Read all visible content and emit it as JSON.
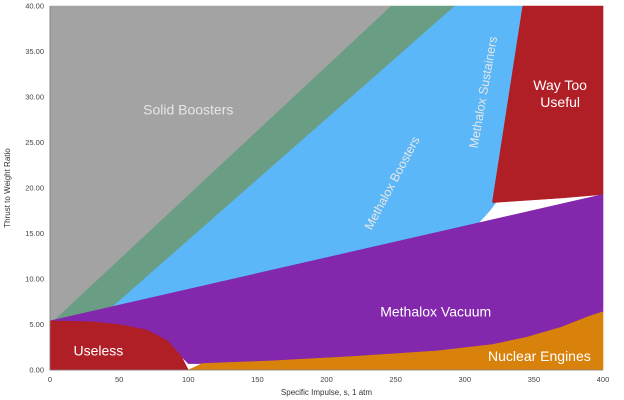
{
  "chart_data": {
    "type": "area",
    "title": "",
    "xlabel": "Specific Impulse, s, 1 atm",
    "ylabel": "Thrust to Weight Ratio",
    "xlim": [
      0,
      400
    ],
    "ylim": [
      0,
      40
    ],
    "x_ticks": [
      0,
      50,
      100,
      150,
      200,
      250,
      300,
      350,
      400
    ],
    "y_ticks": [
      "0.00",
      "5.00",
      "10.00",
      "15.00",
      "20.00",
      "25.00",
      "30.00",
      "35.00",
      "40.00"
    ],
    "grid": false,
    "regions": [
      {
        "name": "Solid Boosters",
        "color": "#a3a3a3",
        "label_color": "#e6e6e6",
        "label_at": [
          100,
          28.5
        ],
        "boundary": [
          [
            0,
            40
          ],
          [
            247,
            40
          ],
          [
            247,
            40
          ],
          [
            243,
            32
          ],
          [
            238,
            25
          ],
          [
            233,
            20
          ],
          [
            228,
            17
          ],
          [
            218,
            14.5
          ],
          [
            200,
            12.2
          ],
          [
            175,
            10.3
          ],
          [
            150,
            8.6
          ],
          [
            120,
            7.3
          ],
          [
            90,
            6.3
          ],
          [
            60,
            5.7
          ],
          [
            30,
            5.35
          ],
          [
            0,
            5.2
          ]
        ]
      },
      {
        "name": "Methalox Boosters",
        "color": "#6a9e84",
        "label_color": "#e6e6e6",
        "label_at": [
          248,
          20.5
        ],
        "label_rotate": -62,
        "boundary": [
          [
            247,
            40
          ],
          [
            293,
            40
          ],
          [
            291,
            30
          ],
          [
            288,
            23
          ],
          [
            282,
            18
          ],
          [
            272,
            15
          ],
          [
            255,
            12.5
          ],
          [
            235,
            10.6
          ],
          [
            200,
            9.0
          ],
          [
            150,
            7.2
          ],
          [
            110,
            5.8
          ],
          [
            70,
            5.2
          ],
          [
            30,
            5.0
          ],
          [
            0,
            5.0
          ]
        ]
      },
      {
        "name": "Methalox Sustainers",
        "color": "#5bb7f8",
        "label_color": "#e6e6e6",
        "label_at": [
          314,
          30.5
        ],
        "label_rotate": -80,
        "boundary": [
          [
            293,
            40
          ],
          [
            342,
            40
          ],
          [
            338,
            30
          ],
          [
            335,
            24
          ],
          [
            328,
            19.5
          ],
          [
            318,
            17.5
          ],
          [
            300,
            14.5
          ],
          [
            280,
            12.0
          ],
          [
            250,
            10.2
          ],
          [
            200,
            8.4
          ],
          [
            150,
            7.0
          ],
          [
            100,
            5.9
          ],
          [
            60,
            5.0
          ],
          [
            30,
            4.9
          ]
        ]
      },
      {
        "name": "Way Too Useful",
        "color": "#b01f25",
        "label_color": "#ffffff",
        "label_lines": [
          "Way Too",
          "Useful"
        ],
        "label_at": [
          369,
          30.3
        ],
        "boundary": [
          [
            342,
            40
          ],
          [
            400,
            40
          ],
          [
            400,
            19.3
          ],
          [
            370,
            18.9
          ],
          [
            340,
            18.6
          ],
          [
            320,
            18.4
          ]
        ]
      },
      {
        "name": "Methalox Vacuum",
        "color": "#8328ad",
        "label_color": "#ffffff",
        "label_at": [
          279,
          6.3
        ],
        "boundary": [
          [
            400,
            19.3
          ],
          [
            400,
            6.4
          ],
          [
            390,
            5.9
          ],
          [
            370,
            4.7
          ],
          [
            345,
            3.6
          ],
          [
            320,
            2.8
          ],
          [
            280,
            2.1
          ],
          [
            220,
            1.5
          ],
          [
            160,
            1.0
          ],
          [
            110,
            0.7
          ],
          [
            100,
            0.7
          ],
          [
            95,
            1.5
          ],
          [
            85,
            3.2
          ],
          [
            70,
            4.4
          ],
          [
            50,
            5.0
          ],
          [
            30,
            5.3
          ],
          [
            0,
            5.4
          ]
        ]
      },
      {
        "name": "Useless",
        "color": "#b01f25",
        "label_color": "#ffffff",
        "label_at": [
          35,
          2.0
        ],
        "boundary": [
          [
            0,
            5.4
          ],
          [
            30,
            5.3
          ],
          [
            50,
            5.0
          ],
          [
            70,
            4.4
          ],
          [
            85,
            3.2
          ],
          [
            95,
            1.5
          ],
          [
            100,
            0
          ],
          [
            0,
            0
          ]
        ]
      },
      {
        "name": "Nuclear Engines",
        "color": "#d9820b",
        "label_color": "#ffffff",
        "label_at": [
          354,
          1.4
        ],
        "boundary": [
          [
            400,
            6.4
          ],
          [
            390,
            5.9
          ],
          [
            370,
            4.7
          ],
          [
            345,
            3.6
          ],
          [
            320,
            2.8
          ],
          [
            280,
            2.1
          ],
          [
            220,
            1.5
          ],
          [
            160,
            1.0
          ],
          [
            110,
            0.7
          ],
          [
            100,
            0
          ],
          [
            400,
            0
          ]
        ]
      }
    ]
  }
}
